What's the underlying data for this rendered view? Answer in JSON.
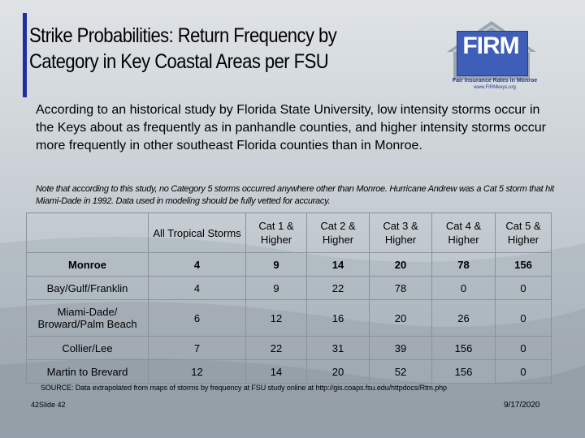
{
  "title": {
    "line1": "Strike Probabilities:  Return Frequency by",
    "line2": "Category in Key Coastal Areas per FSU"
  },
  "logo": {
    "word": "FIRM",
    "subtitle": "Fair Insurance Rates in Monroe",
    "url": "www.FIRMkeys.org",
    "colors": {
      "roof": "#9aa6b2",
      "box": "#3f5eb8",
      "text": "#2a3a8a"
    }
  },
  "intro": "According to an historical study by Florida State University, low intensity storms occur in the Keys about as frequently as in panhandle counties, and higher intensity storms occur more frequently in other southeast Florida counties than in Monroe.",
  "note": "Note that according to this study, no Category 5 storms occurred anywhere other than Monroe.  Hurricane Andrew was a Cat 5 storm that hit Miami-Dade in 1992.  Data used in modeling should be fully vetted for accuracy.",
  "table": {
    "headers": [
      "",
      "All Tropical Storms",
      "Cat 1 & Higher",
      "Cat 2 & Higher",
      "Cat 3 & Higher",
      "Cat 4 & Higher",
      "Cat 5 & Higher"
    ],
    "rows": [
      {
        "region": "Monroe",
        "values": [
          "4",
          "9",
          "14",
          "20",
          "78",
          "156"
        ]
      },
      {
        "region": "Bay/Gulf/Franklin",
        "values": [
          "4",
          "9",
          "22",
          "78",
          "0",
          "0"
        ]
      },
      {
        "region": "Miami-Dade/ Broward/Palm Beach",
        "values": [
          "6",
          "12",
          "16",
          "20",
          "26",
          "0"
        ]
      },
      {
        "region": "Collier/Lee",
        "values": [
          "7",
          "22",
          "31",
          "39",
          "156",
          "0"
        ]
      },
      {
        "region": "Martin to Brevard",
        "values": [
          "12",
          "14",
          "20",
          "52",
          "156",
          "0"
        ]
      }
    ]
  },
  "source": "SOURCE: Data extrapolated from maps of storms by frequency at FSU study online at http://gis.coaps.fsu.edu/httpdocs/Rtm.php",
  "footer": {
    "slide_label": "42Slide 42",
    "date": "9/17/2020"
  },
  "colors": {
    "accent_bar": "#1f2fa0"
  }
}
